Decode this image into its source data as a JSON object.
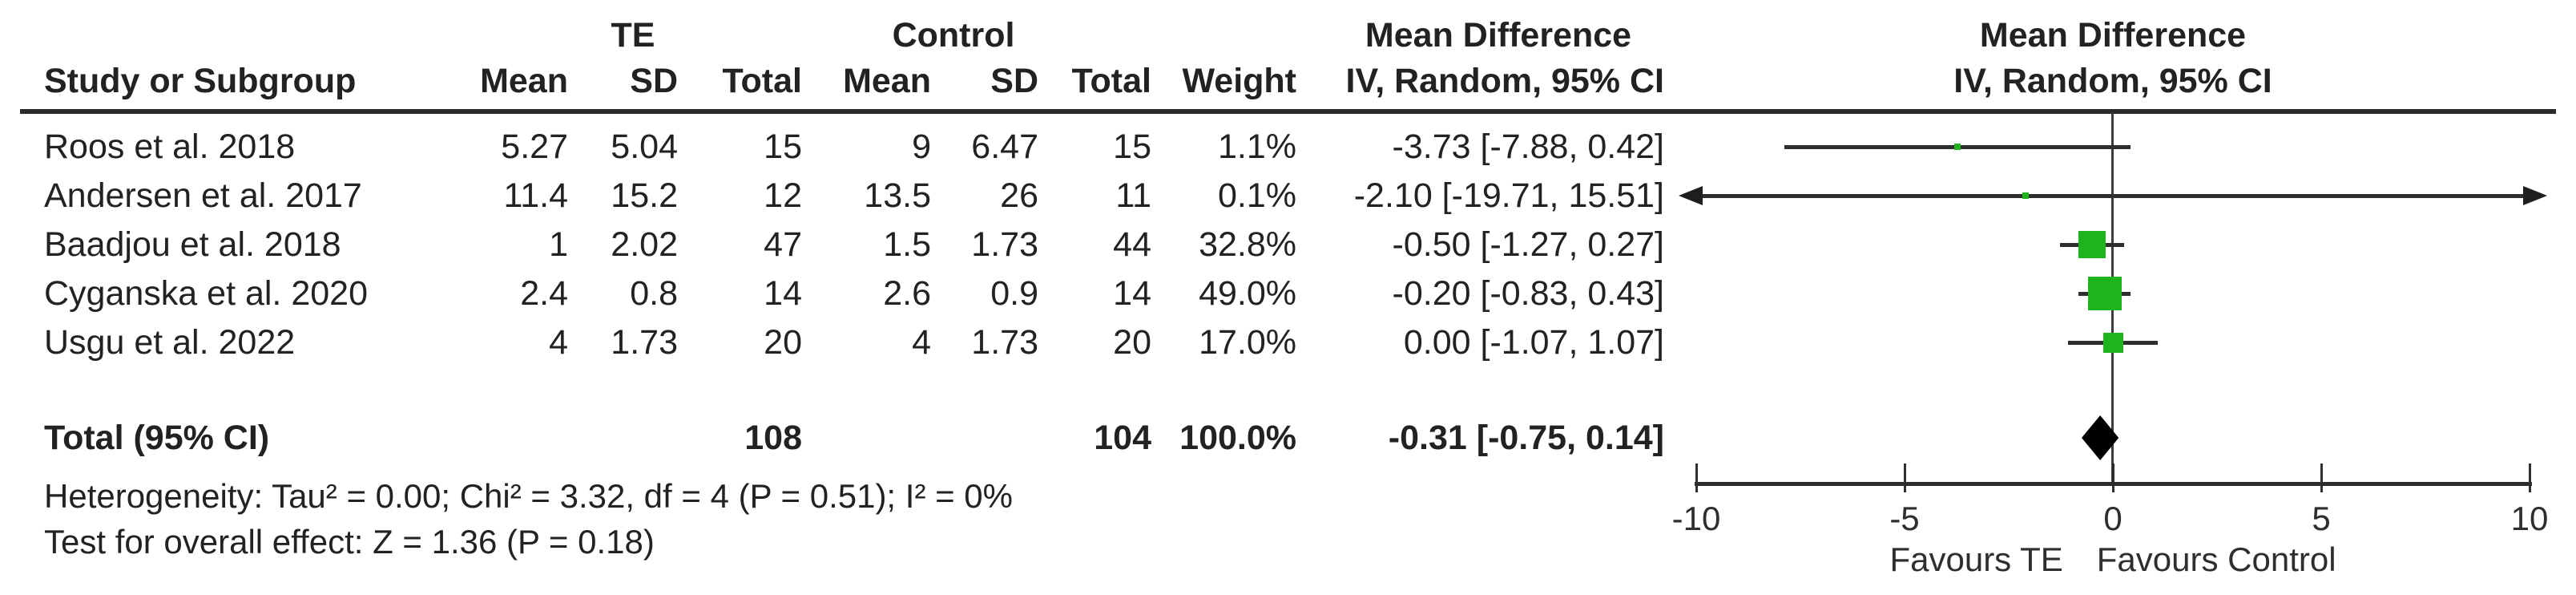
{
  "table": {
    "group_headers": {
      "te": "TE",
      "control": "Control",
      "md": "Mean Difference"
    },
    "headers": {
      "study": "Study or Subgroup",
      "mean": "Mean",
      "sd": "SD",
      "total": "Total",
      "weight": "Weight",
      "ci": "IV, Random, 95% CI"
    },
    "rows": [
      {
        "study": "Roos et al. 2018",
        "te_mean": "5.27",
        "te_sd": "5.04",
        "te_total": "15",
        "c_mean": "9",
        "c_sd": "6.47",
        "c_total": "15",
        "weight": "1.1%",
        "ci": "-3.73 [-7.88, 0.42]"
      },
      {
        "study": "Andersen et al. 2017",
        "te_mean": "11.4",
        "te_sd": "15.2",
        "te_total": "12",
        "c_mean": "13.5",
        "c_sd": "26",
        "c_total": "11",
        "weight": "0.1%",
        "ci": "-2.10 [-19.71, 15.51]"
      },
      {
        "study": "Baadjou et al. 2018",
        "te_mean": "1",
        "te_sd": "2.02",
        "te_total": "47",
        "c_mean": "1.5",
        "c_sd": "1.73",
        "c_total": "44",
        "weight": "32.8%",
        "ci": "-0.50 [-1.27, 0.27]"
      },
      {
        "study": "Cyganska et al. 2020",
        "te_mean": "2.4",
        "te_sd": "0.8",
        "te_total": "14",
        "c_mean": "2.6",
        "c_sd": "0.9",
        "c_total": "14",
        "weight": "49.0%",
        "ci": "-0.20 [-0.83, 0.43]"
      },
      {
        "study": "Usgu et al. 2022",
        "te_mean": "4",
        "te_sd": "1.73",
        "te_total": "20",
        "c_mean": "4",
        "c_sd": "1.73",
        "c_total": "20",
        "weight": "17.0%",
        "ci": "0.00 [-1.07, 1.07]"
      }
    ],
    "total_row": {
      "label": "Total (95% CI)",
      "te_total": "108",
      "c_total": "104",
      "weight": "100.0%",
      "ci": "-0.31 [-0.75, 0.14]"
    },
    "footnotes": [
      "Heterogeneity: Tau² = 0.00; Chi² = 3.32, df = 4 (P = 0.51); I² = 0%",
      "Test for overall effect: Z = 1.36 (P = 0.18)"
    ]
  },
  "plot": {
    "header_line1": "Mean Difference",
    "header_line2": "IV, Random, 95% CI",
    "favours_left": "Favours TE",
    "favours_right": "Favours Control",
    "colors": {
      "marker_green": "#1EB41E",
      "diamond_black": "#000000",
      "line_dark": "#2e2e2e"
    }
  },
  "chart_data": {
    "type": "forest",
    "title": "Mean Difference — IV, Random, 95% CI",
    "x_axis": {
      "min": -10,
      "max": 10,
      "ticks": [
        "-10",
        "-5",
        "0",
        "5",
        "10"
      ],
      "tick_values": [
        -10,
        -5,
        0,
        5,
        10
      ]
    },
    "studies": [
      {
        "name": "Roos et al. 2018",
        "md": -3.73,
        "ci_low": -7.88,
        "ci_high": 0.42,
        "weight_pct": 1.1
      },
      {
        "name": "Andersen et al. 2017",
        "md": -2.1,
        "ci_low": -19.71,
        "ci_high": 15.51,
        "weight_pct": 0.1
      },
      {
        "name": "Baadjou et al. 2018",
        "md": -0.5,
        "ci_low": -1.27,
        "ci_high": 0.27,
        "weight_pct": 32.8
      },
      {
        "name": "Cyganska et al. 2020",
        "md": -0.2,
        "ci_low": -0.83,
        "ci_high": 0.43,
        "weight_pct": 49.0
      },
      {
        "name": "Usgu et al. 2022",
        "md": 0.0,
        "ci_low": -1.07,
        "ci_high": 1.07,
        "weight_pct": 17.0
      }
    ],
    "total": {
      "md": -0.31,
      "ci_low": -0.75,
      "ci_high": 0.14
    },
    "heterogeneity": "Tau² = 0.00; Chi² = 3.32, df = 4 (P = 0.51); I² = 0%",
    "overall_effect": "Z = 1.36 (P = 0.18)"
  }
}
